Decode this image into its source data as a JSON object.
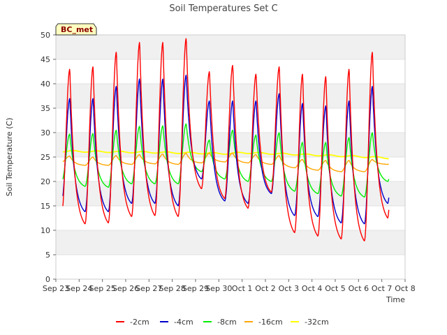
{
  "chart_data": {
    "type": "line",
    "title": "Soil Temperatures Set C",
    "xlabel": "Time",
    "ylabel": "Soil Temperature (C)",
    "badge": "BC_met",
    "ylim": [
      0,
      50
    ],
    "yticks": [
      0,
      5,
      10,
      15,
      20,
      25,
      30,
      35,
      40,
      45,
      50
    ],
    "xlim_days": [
      0,
      15
    ],
    "xtick_labels": [
      "Sep 23",
      "Sep 24",
      "Sep 25",
      "Sep 26",
      "Sep 27",
      "Sep 28",
      "Sep 29",
      "Sep 30",
      "Oct 1",
      "Oct 2",
      "Oct 3",
      "Oct 4",
      "Oct 5",
      "Oct 6",
      "Oct 7",
      "Oct 8"
    ],
    "grid": "horizontal bands",
    "legend_position": "bottom",
    "data_range_days": [
      0.3,
      14.3
    ],
    "series": [
      {
        "name": "-2cm",
        "color": "#ff0000",
        "width": 1.4,
        "daily_max": [
          43.0,
          43.5,
          46.5,
          48.5,
          48.5,
          49.3,
          42.5,
          43.8,
          42.0,
          43.5,
          42.0,
          41.5,
          43.0,
          46.5
        ],
        "daily_min": [
          13.5,
          11.3,
          11.5,
          12.8,
          13.0,
          12.8,
          18.5,
          16.5,
          14.5,
          17.8,
          9.5,
          8.8,
          8.2,
          7.8,
          12.5
        ]
      },
      {
        "name": "-4cm",
        "color": "#0000cc",
        "width": 1.4,
        "daily_max": [
          37.0,
          37.0,
          39.5,
          41.0,
          41.0,
          41.8,
          36.5,
          36.5,
          36.5,
          38.0,
          36.0,
          35.5,
          36.5,
          39.5
        ],
        "daily_min": [
          16.0,
          13.8,
          13.8,
          15.5,
          15.5,
          15.0,
          20.5,
          16.0,
          15.5,
          17.5,
          13.0,
          12.8,
          11.5,
          11.3,
          15.5
        ]
      },
      {
        "name": "-8cm",
        "color": "#00ee00",
        "width": 1.4,
        "daily_max": [
          29.7,
          29.8,
          30.5,
          31.3,
          31.4,
          31.8,
          28.5,
          30.5,
          29.5,
          30.0,
          28.0,
          28.0,
          29.0,
          30.0
        ],
        "daily_min": [
          20.0,
          19.0,
          18.8,
          19.5,
          19.5,
          19.5,
          22.0,
          20.5,
          20.0,
          20.0,
          18.0,
          17.5,
          17.0,
          16.8,
          20.0
        ]
      },
      {
        "name": "-16cm",
        "color": "#ffa500",
        "width": 1.4,
        "daily_max": [
          25.2,
          25.0,
          25.3,
          25.5,
          25.6,
          25.8,
          25.8,
          25.8,
          25.5,
          25.3,
          24.5,
          24.3,
          24.3,
          24.5
        ],
        "daily_min": [
          24.0,
          23.3,
          23.3,
          23.5,
          23.6,
          23.5,
          23.8,
          24.0,
          23.8,
          23.5,
          22.8,
          22.3,
          22.0,
          22.0,
          23.5
        ]
      },
      {
        "name": "-32cm",
        "color": "#ffff00",
        "width": 1.8,
        "trend": [
          [
            0.3,
            26.2
          ],
          [
            5.0,
            25.9
          ],
          [
            7.5,
            25.7
          ],
          [
            8.0,
            25.9
          ],
          [
            10.0,
            25.6
          ],
          [
            13.0,
            25.1
          ],
          [
            14.3,
            24.8
          ]
        ],
        "amplitude": 0.15
      }
    ]
  }
}
